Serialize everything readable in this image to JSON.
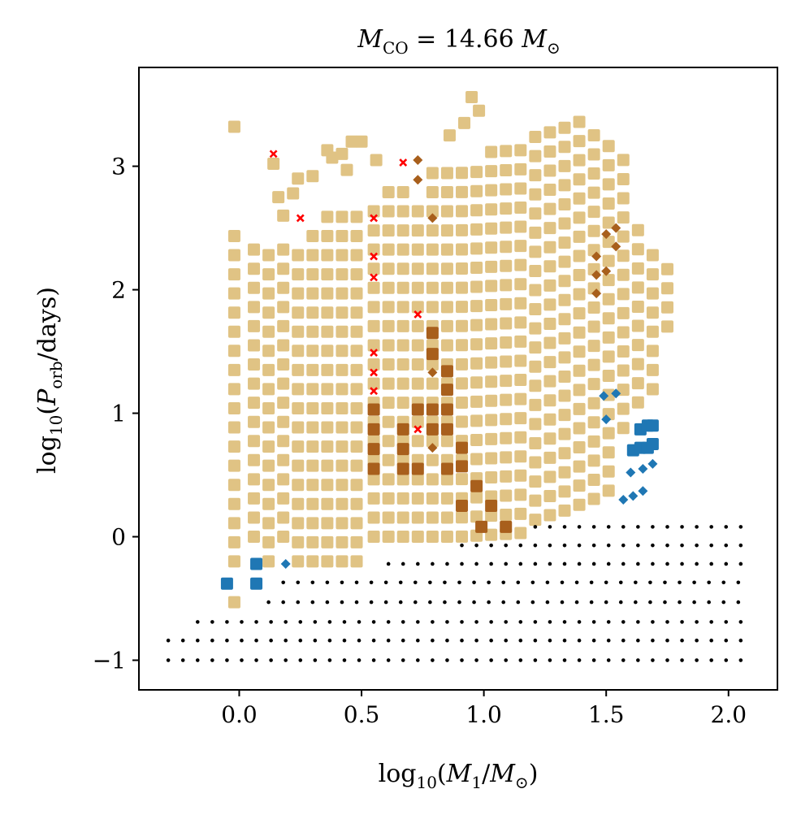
{
  "chart_data": {
    "type": "scatter",
    "title": "M_CO = 14.66 M_⊙",
    "title_parts": {
      "main": "M",
      "sub": "CO",
      "rhs": " = 14.66 ",
      "rhs_main": "M",
      "rhs_sub": "⊙"
    },
    "xlabel": "log10(M1/M⊙)",
    "xlabel_parts": {
      "pre": "log",
      "sub1": "10",
      "open": "(",
      "m": "M",
      "msub": "1",
      "slash": "/",
      "m2": "M",
      "m2sub": "⊙",
      "close": ")"
    },
    "ylabel": "log10(Porb/days)",
    "ylabel_parts": {
      "pre": "log",
      "sub1": "10",
      "open": "(",
      "p": "P",
      "psub": "orb",
      "rest": "/days)"
    },
    "xlim": [
      -0.41,
      2.2
    ],
    "ylim": [
      -1.24,
      3.8
    ],
    "xticks": [
      0.0,
      0.5,
      1.0,
      1.5,
      2.0
    ],
    "xtick_labels": [
      "0.0",
      "0.5",
      "1.0",
      "1.5",
      "2.0"
    ],
    "yticks": [
      -1,
      0,
      1,
      2,
      3
    ],
    "ytick_labels": [
      "−1",
      "0",
      "1",
      "2",
      "3"
    ],
    "grid": false,
    "series": [
      {
        "name": "outcome-tan",
        "marker": "square",
        "color": "#e0c384",
        "columns": [
          {
            "x": -0.02,
            "y0": -0.2,
            "y1": 2.45
          },
          {
            "x": 0.06,
            "y0": 0.0,
            "y1": 2.43
          },
          {
            "x": 0.12,
            "y0": -0.2,
            "y1": 2.43
          },
          {
            "x": 0.18,
            "y0": 0.0,
            "y1": 2.43
          },
          {
            "x": 0.24,
            "y0": -0.2,
            "y1": 2.43
          },
          {
            "x": 0.3,
            "y0": -0.2,
            "y1": 2.58
          },
          {
            "x": 0.36,
            "y0": -0.2,
            "y1": 2.73
          },
          {
            "x": 0.42,
            "y0": -0.2,
            "y1": 2.73
          },
          {
            "x": 0.48,
            "y0": -0.2,
            "y1": 2.73
          },
          {
            "x": 0.55,
            "y0": 0.0,
            "y1": 2.73
          },
          {
            "x": 0.61,
            "y0": 0.0,
            "y1": 2.88
          },
          {
            "x": 0.67,
            "y0": 0.0,
            "y1": 2.88
          },
          {
            "x": 0.73,
            "y0": 0.0,
            "y1": 2.73
          },
          {
            "x": 0.79,
            "y0": 0.0,
            "y1": 3.03
          },
          {
            "x": 0.85,
            "y0": 0.0,
            "y1": 3.03
          },
          {
            "x": 0.91,
            "y0": 0.0,
            "y1": 3.03
          },
          {
            "x": 0.97,
            "y0": 0.0,
            "y1": 3.03
          },
          {
            "x": 1.03,
            "y0": 0.0,
            "y1": 3.1
          },
          {
            "x": 1.09,
            "y0": 0.0,
            "y1": 3.15
          },
          {
            "x": 1.15,
            "y0": 0.0,
            "y1": 3.2
          },
          {
            "x": 1.21,
            "y0": 0.1,
            "y1": 3.25
          },
          {
            "x": 1.27,
            "y0": 0.13,
            "y1": 3.3
          },
          {
            "x": 1.33,
            "y0": 0.16,
            "y1": 3.35
          },
          {
            "x": 1.39,
            "y0": 0.2,
            "y1": 3.4
          },
          {
            "x": 1.45,
            "y0": 0.24,
            "y1": 3.2
          },
          {
            "x": 1.51,
            "y0": 0.3,
            "y1": 3.1
          },
          {
            "x": 1.57,
            "y0": 0.8,
            "y1": 3.0
          },
          {
            "x": 1.63,
            "y0": 1.0,
            "y1": 2.5
          },
          {
            "x": 1.69,
            "y0": 1.1,
            "y1": 2.25
          },
          {
            "x": 1.75,
            "y0": 1.6,
            "y1": 2.12
          }
        ],
        "extra_points": [
          [
            -0.02,
            -0.53
          ],
          [
            -0.02,
            3.32
          ],
          [
            0.14,
            3.02
          ],
          [
            0.16,
            2.75
          ],
          [
            0.18,
            2.6
          ],
          [
            0.22,
            2.78
          ],
          [
            0.24,
            2.9
          ],
          [
            0.3,
            2.92
          ],
          [
            0.36,
            3.13
          ],
          [
            0.38,
            3.07
          ],
          [
            0.42,
            3.1
          ],
          [
            0.44,
            2.97
          ],
          [
            0.46,
            3.2
          ],
          [
            0.5,
            3.2
          ],
          [
            0.56,
            3.05
          ],
          [
            0.86,
            3.25
          ],
          [
            0.92,
            3.35
          ],
          [
            0.95,
            3.56
          ],
          [
            0.98,
            3.45
          ]
        ]
      },
      {
        "name": "outcome-brown",
        "marker": "square",
        "color": "#a85f1c",
        "points": [
          [
            0.55,
            0.55
          ],
          [
            0.55,
            0.71
          ],
          [
            0.55,
            0.87
          ],
          [
            0.55,
            1.03
          ],
          [
            0.67,
            0.55
          ],
          [
            0.67,
            0.71
          ],
          [
            0.67,
            0.87
          ],
          [
            0.73,
            0.55
          ],
          [
            0.73,
            1.03
          ],
          [
            0.79,
            0.87
          ],
          [
            0.79,
            1.03
          ],
          [
            0.79,
            1.48
          ],
          [
            0.79,
            1.65
          ],
          [
            0.85,
            0.55
          ],
          [
            0.85,
            0.87
          ],
          [
            0.85,
            1.03
          ],
          [
            0.85,
            1.19
          ],
          [
            0.85,
            1.34
          ],
          [
            0.91,
            0.57
          ],
          [
            0.91,
            0.72
          ],
          [
            0.91,
            0.25
          ],
          [
            0.97,
            0.41
          ],
          [
            0.99,
            0.08
          ],
          [
            1.03,
            0.25
          ],
          [
            1.09,
            0.08
          ]
        ]
      },
      {
        "name": "outcome-brown-diamond",
        "marker": "diamond",
        "color": "#a85f1c",
        "points": [
          [
            0.73,
            3.05
          ],
          [
            0.73,
            2.89
          ],
          [
            0.79,
            2.58
          ],
          [
            0.79,
            1.33
          ],
          [
            0.79,
            0.72
          ],
          [
            1.46,
            1.97
          ],
          [
            1.46,
            2.27
          ],
          [
            1.46,
            2.12
          ],
          [
            1.5,
            2.45
          ],
          [
            1.5,
            2.15
          ],
          [
            1.54,
            2.35
          ],
          [
            1.54,
            2.5
          ]
        ]
      },
      {
        "name": "outcome-red",
        "marker": "x",
        "color": "#ff0000",
        "points": [
          [
            0.14,
            3.1
          ],
          [
            0.25,
            2.58
          ],
          [
            0.55,
            2.58
          ],
          [
            0.55,
            2.27
          ],
          [
            0.55,
            2.1
          ],
          [
            0.55,
            1.49
          ],
          [
            0.55,
            1.33
          ],
          [
            0.55,
            1.18
          ],
          [
            0.67,
            3.03
          ],
          [
            0.73,
            1.8
          ],
          [
            0.73,
            0.87
          ]
        ]
      },
      {
        "name": "outcome-blue",
        "marker": "square",
        "color": "#1f77b4",
        "points": [
          [
            -0.05,
            -0.38
          ],
          [
            0.07,
            -0.22
          ],
          [
            0.07,
            -0.38
          ],
          [
            1.61,
            0.7
          ],
          [
            1.64,
            0.72
          ],
          [
            1.64,
            0.87
          ],
          [
            1.67,
            0.72
          ],
          [
            1.67,
            0.9
          ],
          [
            1.69,
            0.75
          ],
          [
            1.69,
            0.9
          ]
        ]
      },
      {
        "name": "outcome-blue-diamond",
        "marker": "diamond",
        "color": "#1f77b4",
        "points": [
          [
            0.19,
            -0.22
          ],
          [
            1.49,
            1.14
          ],
          [
            1.54,
            1.16
          ],
          [
            1.5,
            0.95
          ],
          [
            1.57,
            0.3
          ],
          [
            1.61,
            0.33
          ],
          [
            1.6,
            0.52
          ],
          [
            1.65,
            0.55
          ],
          [
            1.69,
            0.59
          ],
          [
            1.65,
            0.37
          ]
        ]
      },
      {
        "name": "outcome-black",
        "marker": "dot",
        "color": "#000000",
        "rows": [
          {
            "y": 0.08,
            "x0": 1.21,
            "x1": 2.08
          },
          {
            "y": -0.07,
            "x0": 0.91,
            "x1": 2.08
          },
          {
            "y": -0.22,
            "x0": 0.61,
            "x1": 2.08
          },
          {
            "y": -0.37,
            "x0": 0.18,
            "x1": 2.08
          },
          {
            "y": -0.53,
            "x0": 0.12,
            "x1": 2.08
          },
          {
            "y": -0.69,
            "x0": -0.17,
            "x1": 2.08
          },
          {
            "y": -0.84,
            "x0": -0.29,
            "x1": 2.08
          },
          {
            "y": -1.0,
            "x0": -0.29,
            "x1": 2.08
          }
        ],
        "row_step": 0.06
      }
    ]
  }
}
